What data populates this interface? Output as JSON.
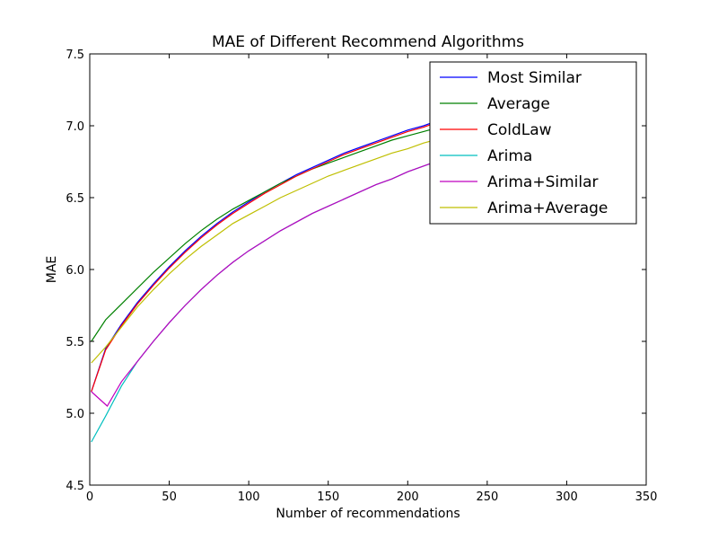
{
  "chart_data": {
    "type": "line",
    "title": "MAE of Different Recommend Algorithms",
    "xlabel": "Number of recommendations",
    "ylabel": "MAE",
    "xlim": [
      0,
      350
    ],
    "ylim": [
      4.5,
      7.5
    ],
    "xticks": [
      "0",
      "50",
      "100",
      "150",
      "200",
      "250",
      "300",
      "350"
    ],
    "yticks": [
      "4.5",
      "5.0",
      "5.5",
      "6.0",
      "6.5",
      "7.0",
      "7.5"
    ],
    "grid": false,
    "legend_position": "top-right",
    "series": [
      {
        "name": "Most Similar",
        "color": "#0000ff",
        "x": [
          1,
          10,
          20,
          30,
          40,
          50,
          60,
          70,
          80,
          90,
          100,
          110,
          120,
          130,
          140,
          150,
          160,
          170,
          180,
          190,
          200,
          210,
          220,
          230,
          240,
          250,
          260,
          270,
          280,
          290,
          300
        ],
        "y": [
          5.15,
          5.45,
          5.62,
          5.77,
          5.9,
          6.02,
          6.13,
          6.23,
          6.32,
          6.4,
          6.47,
          6.54,
          6.6,
          6.66,
          6.71,
          6.76,
          6.81,
          6.85,
          6.89,
          6.93,
          6.97,
          7.0,
          7.04,
          7.07,
          7.1,
          7.13,
          7.16,
          7.19,
          7.21,
          7.23,
          7.25
        ]
      },
      {
        "name": "Average",
        "color": "#008000",
        "x": [
          1,
          10,
          20,
          30,
          40,
          50,
          60,
          70,
          80,
          90,
          100,
          110,
          120,
          130,
          140,
          150,
          160,
          170,
          180,
          190,
          200,
          210,
          220,
          230,
          240,
          250,
          260,
          270,
          280,
          290,
          300
        ],
        "y": [
          5.5,
          5.65,
          5.76,
          5.87,
          5.98,
          6.08,
          6.18,
          6.27,
          6.35,
          6.42,
          6.48,
          6.54,
          6.6,
          6.65,
          6.7,
          6.74,
          6.78,
          6.82,
          6.86,
          6.9,
          6.93,
          6.96,
          6.99,
          7.02,
          7.05,
          7.07,
          7.1,
          7.12,
          7.14,
          7.16,
          7.18
        ]
      },
      {
        "name": "ColdLaw",
        "color": "#ff0000",
        "x": [
          1,
          10,
          20,
          30,
          40,
          50,
          60,
          70,
          80,
          90,
          100,
          110,
          120,
          130,
          140,
          150,
          160,
          170,
          180,
          190,
          200,
          210,
          220,
          230,
          240,
          250,
          260,
          270,
          280,
          290,
          300
        ],
        "y": [
          5.15,
          5.44,
          5.61,
          5.76,
          5.89,
          6.01,
          6.12,
          6.22,
          6.31,
          6.39,
          6.46,
          6.53,
          6.59,
          6.65,
          6.7,
          6.75,
          6.8,
          6.84,
          6.88,
          6.92,
          6.96,
          6.99,
          7.03,
          7.06,
          7.09,
          7.12,
          7.15,
          7.18,
          7.2,
          7.22,
          7.24
        ]
      },
      {
        "name": "Arima",
        "color": "#00bfbf",
        "x": [
          1,
          10,
          20,
          30,
          40,
          50,
          60,
          70,
          80,
          90,
          100,
          110,
          120,
          130,
          140,
          150,
          160,
          170,
          180,
          190,
          200,
          210,
          220,
          230,
          240,
          250,
          260,
          270,
          280,
          290,
          300
        ],
        "y": [
          4.8,
          4.98,
          5.19,
          5.36,
          5.5,
          5.63,
          5.75,
          5.86,
          5.96,
          6.05,
          6.13,
          6.2,
          6.27,
          6.33,
          6.39,
          6.44,
          6.49,
          6.54,
          6.59,
          6.63,
          6.68,
          6.72,
          6.76,
          6.8,
          6.84,
          6.88,
          6.91,
          6.94,
          6.97,
          7.0,
          7.02
        ]
      },
      {
        "name": "Arima+Similar",
        "color": "#bf00bf",
        "x": [
          1,
          11,
          20,
          30,
          40,
          50,
          60,
          70,
          80,
          90,
          100,
          110,
          120,
          130,
          140,
          150,
          160,
          170,
          180,
          190,
          200,
          210,
          220,
          230,
          240,
          250,
          260,
          270,
          280,
          290,
          300
        ],
        "y": [
          5.15,
          5.05,
          5.22,
          5.36,
          5.5,
          5.63,
          5.75,
          5.86,
          5.96,
          6.05,
          6.13,
          6.2,
          6.27,
          6.33,
          6.39,
          6.44,
          6.49,
          6.54,
          6.59,
          6.63,
          6.68,
          6.72,
          6.76,
          6.8,
          6.84,
          6.88,
          6.91,
          6.94,
          6.97,
          7.0,
          7.02
        ]
      },
      {
        "name": "Arima+Average",
        "color": "#bfbf00",
        "x": [
          1,
          10,
          20,
          30,
          40,
          50,
          60,
          70,
          80,
          90,
          100,
          110,
          120,
          130,
          140,
          150,
          160,
          170,
          180,
          190,
          200,
          210,
          220,
          230,
          240,
          250,
          260,
          270,
          280,
          290,
          300
        ],
        "y": [
          5.35,
          5.46,
          5.6,
          5.74,
          5.86,
          5.97,
          6.07,
          6.16,
          6.24,
          6.32,
          6.38,
          6.44,
          6.5,
          6.55,
          6.6,
          6.65,
          6.69,
          6.73,
          6.77,
          6.81,
          6.84,
          6.88,
          6.91,
          6.94,
          6.97,
          7.0,
          7.02,
          7.05,
          7.07,
          7.09,
          7.11
        ]
      }
    ]
  }
}
